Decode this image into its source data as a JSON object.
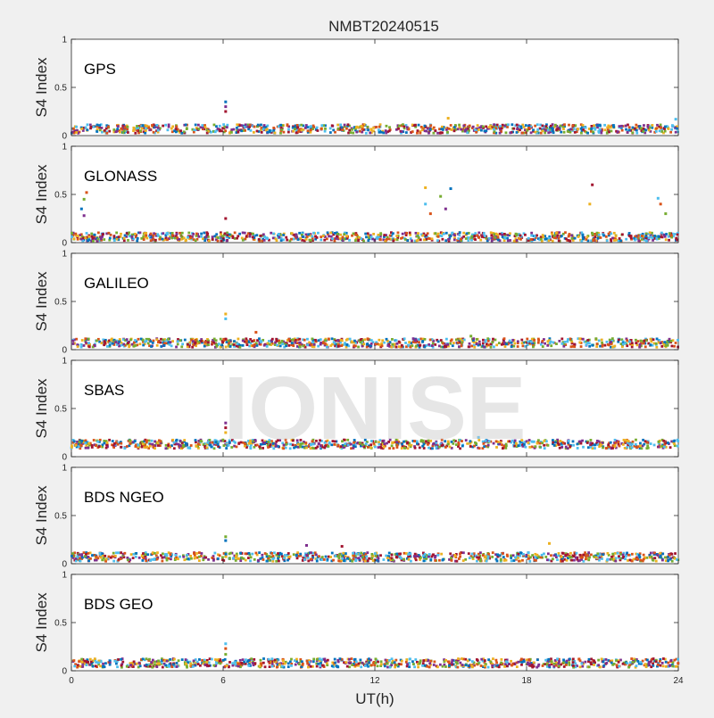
{
  "title": "NMBT20240515",
  "watermark": "IONISE",
  "chart_data": {
    "type": "scatter",
    "xlabel": "UT(h)",
    "ylabel": "S4 Index",
    "xlim": [
      0,
      24
    ],
    "ylim": [
      0,
      1
    ],
    "xticks": [
      "0",
      "6",
      "12",
      "18",
      "24"
    ],
    "yticks": [
      "0",
      "0.5",
      "1"
    ],
    "grid": false,
    "colors": [
      "#0072bd",
      "#d95319",
      "#edb120",
      "#7e2f8e",
      "#77ac30",
      "#4dbeee",
      "#a2142f"
    ],
    "panels": [
      {
        "label": "GPS",
        "baseline": 0.07,
        "spikes": [
          {
            "x": 6.1,
            "y": 0.35
          },
          {
            "x": 6.1,
            "y": 0.3
          },
          {
            "x": 6.1,
            "y": 0.25
          },
          {
            "x": 14.9,
            "y": 0.18
          },
          {
            "x": 23.9,
            "y": 0.17
          }
        ]
      },
      {
        "label": "GLONASS",
        "baseline": 0.06,
        "spikes": [
          {
            "x": 0.6,
            "y": 0.52
          },
          {
            "x": 0.5,
            "y": 0.45
          },
          {
            "x": 0.4,
            "y": 0.35
          },
          {
            "x": 0.5,
            "y": 0.28
          },
          {
            "x": 6.1,
            "y": 0.25
          },
          {
            "x": 14.0,
            "y": 0.57
          },
          {
            "x": 14.0,
            "y": 0.4
          },
          {
            "x": 14.2,
            "y": 0.3
          },
          {
            "x": 14.6,
            "y": 0.48
          },
          {
            "x": 15.0,
            "y": 0.56
          },
          {
            "x": 14.8,
            "y": 0.35
          },
          {
            "x": 20.6,
            "y": 0.6
          },
          {
            "x": 20.5,
            "y": 0.4
          },
          {
            "x": 23.2,
            "y": 0.46
          },
          {
            "x": 23.3,
            "y": 0.4
          },
          {
            "x": 23.5,
            "y": 0.3
          }
        ]
      },
      {
        "label": "GALILEO",
        "baseline": 0.07,
        "spikes": [
          {
            "x": 6.1,
            "y": 0.37
          },
          {
            "x": 6.1,
            "y": 0.32
          },
          {
            "x": 7.3,
            "y": 0.18
          },
          {
            "x": 15.8,
            "y": 0.14
          }
        ]
      },
      {
        "label": "SBAS",
        "baseline": 0.13,
        "spikes": [
          {
            "x": 6.1,
            "y": 0.35
          },
          {
            "x": 6.1,
            "y": 0.3
          },
          {
            "x": 6.1,
            "y": 0.25
          },
          {
            "x": 16.1,
            "y": 0.2
          }
        ]
      },
      {
        "label": "BDS NGEO",
        "baseline": 0.07,
        "spikes": [
          {
            "x": 6.1,
            "y": 0.28
          },
          {
            "x": 6.1,
            "y": 0.24
          },
          {
            "x": 9.3,
            "y": 0.19
          },
          {
            "x": 10.7,
            "y": 0.18
          },
          {
            "x": 18.9,
            "y": 0.21
          }
        ]
      },
      {
        "label": "BDS GEO",
        "baseline": 0.08,
        "spikes": [
          {
            "x": 6.1,
            "y": 0.28
          },
          {
            "x": 6.1,
            "y": 0.23
          },
          {
            "x": 6.1,
            "y": 0.17
          }
        ]
      }
    ]
  }
}
